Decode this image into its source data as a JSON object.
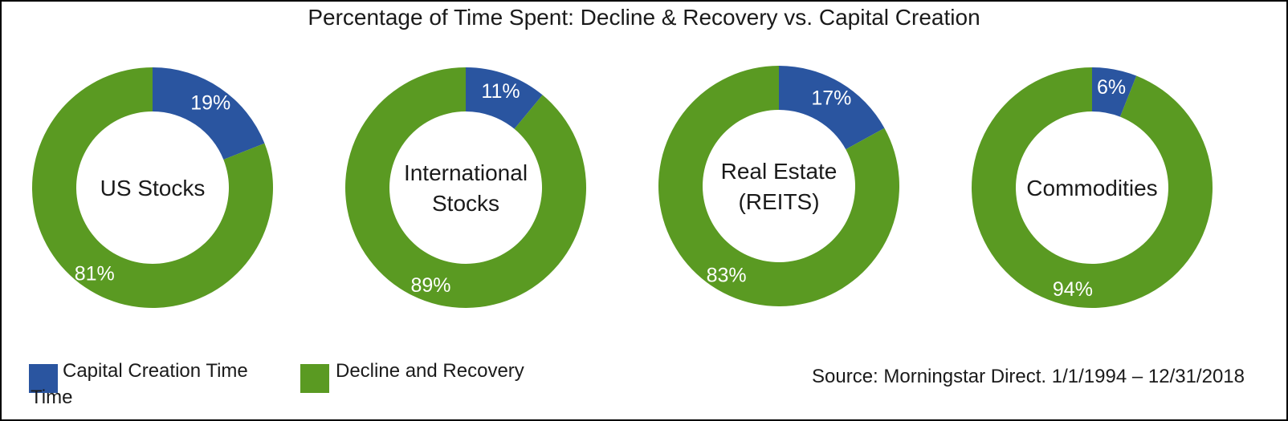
{
  "title": "Percentage of Time Spent: Decline & Recovery vs. Capital Creation",
  "colors": {
    "capital": "#2a55a0",
    "decline": "#5a9a22"
  },
  "chart_data": [
    {
      "type": "pie",
      "center_label": [
        "US Stocks"
      ],
      "categories": [
        "Capital Creation Time",
        "Decline and Recovery"
      ],
      "values": [
        19,
        81
      ],
      "labels": [
        "19%",
        "81%"
      ]
    },
    {
      "type": "pie",
      "center_label": [
        "International",
        "Stocks"
      ],
      "categories": [
        "Capital Creation Time",
        "Decline and Recovery"
      ],
      "values": [
        11,
        89
      ],
      "labels": [
        "11%",
        "89%"
      ]
    },
    {
      "type": "pie",
      "center_label": [
        "Real Estate",
        "(REITS)"
      ],
      "categories": [
        "Capital Creation Time",
        "Decline and Recovery"
      ],
      "values": [
        17,
        83
      ],
      "labels": [
        "17%",
        "83%"
      ]
    },
    {
      "type": "pie",
      "center_label": [
        "Commodities"
      ],
      "categories": [
        "Capital Creation Time",
        "Decline and Recovery"
      ],
      "values": [
        6,
        94
      ],
      "labels": [
        "6%",
        "94%"
      ]
    }
  ],
  "legend": {
    "capital_label": "Capital Creation Time",
    "capital_wrap": "Time",
    "decline_label": "Decline and Recovery"
  },
  "source": "Source: Morningstar Direct. 1/1/1994 – 12/31/2018"
}
